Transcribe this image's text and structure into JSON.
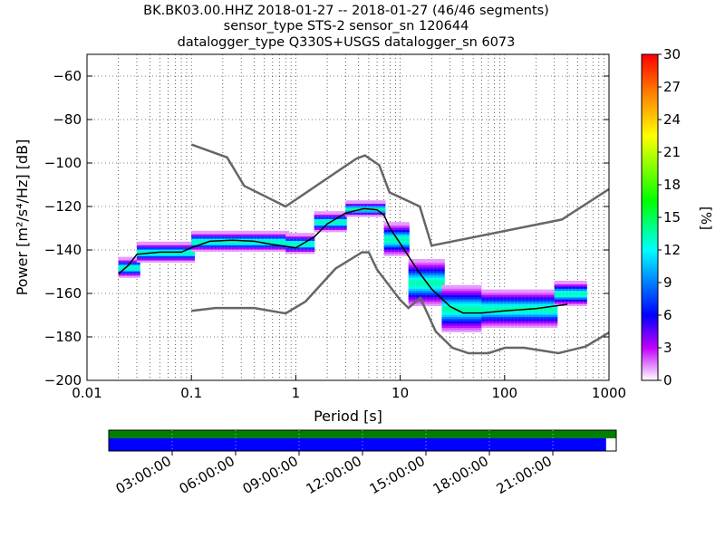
{
  "title": {
    "line1": "BK.BK03.00.HHZ   2018-01-27 -- 2018-01-27  (46/46 segments)",
    "line2": "sensor_type STS-2 sensor_sn 120644",
    "line3": "datalogger_type Q330S+USGS datalogger_sn 6073"
  },
  "colors": {
    "noise_model": "#666666",
    "mode_line": "#000000",
    "coverage_green": "#008000",
    "coverage_blue": "#0000ff"
  },
  "chart_data": {
    "type": "heatmap",
    "description_kind": "probabilistic power spectral density",
    "xlabel": "Period [s]",
    "ylabel": "Power [m²/s⁴/Hz] [dB]",
    "xscale": "log",
    "xlim": [
      0.01,
      1000
    ],
    "ylim": [
      -200,
      -50
    ],
    "xticks": [
      {
        "value": 0.01,
        "label": "0.01"
      },
      {
        "value": 0.1,
        "label": "0.1"
      },
      {
        "value": 1,
        "label": "1"
      },
      {
        "value": 10,
        "label": "10"
      },
      {
        "value": 100,
        "label": "100"
      },
      {
        "value": 1000,
        "label": "1000"
      }
    ],
    "yticks": [
      {
        "value": -60,
        "label": "−60"
      },
      {
        "value": -80,
        "label": "−80"
      },
      {
        "value": -100,
        "label": "−100"
      },
      {
        "value": -120,
        "label": "−120"
      },
      {
        "value": -140,
        "label": "−140"
      },
      {
        "value": -160,
        "label": "−160"
      },
      {
        "value": -180,
        "label": "−180"
      },
      {
        "value": -200,
        "label": "−200"
      }
    ],
    "grid": "dotted",
    "colorbar": {
      "label": "[%]",
      "range": [
        0,
        30
      ],
      "ticks": [
        {
          "value": 0,
          "label": "0"
        },
        {
          "value": 3,
          "label": "3"
        },
        {
          "value": 6,
          "label": "6"
        },
        {
          "value": 9,
          "label": "9"
        },
        {
          "value": 12,
          "label": "12"
        },
        {
          "value": 15,
          "label": "15"
        },
        {
          "value": 18,
          "label": "18"
        },
        {
          "value": 21,
          "label": "21"
        },
        {
          "value": 24,
          "label": "24"
        },
        {
          "value": 27,
          "label": "27"
        },
        {
          "value": 30,
          "label": "30"
        }
      ]
    },
    "noise_models": {
      "high": [
        [
          0.1,
          -91.5
        ],
        [
          0.22,
          -97.4
        ],
        [
          0.32,
          -110.5
        ],
        [
          0.8,
          -120
        ],
        [
          3.8,
          -98
        ],
        [
          4.6,
          -96.5
        ],
        [
          6.3,
          -101
        ],
        [
          7.9,
          -113.5
        ],
        [
          15.4,
          -120
        ],
        [
          20,
          -138
        ],
        [
          354,
          -126
        ],
        [
          1000,
          -112
        ]
      ],
      "low": [
        [
          0.1,
          -168
        ],
        [
          0.17,
          -166.7
        ],
        [
          0.4,
          -166.7
        ],
        [
          0.8,
          -169.2
        ],
        [
          1.24,
          -163.7
        ],
        [
          2.4,
          -148.6
        ],
        [
          4.3,
          -141.1
        ],
        [
          5,
          -141.1
        ],
        [
          6,
          -149
        ],
        [
          10,
          -163
        ],
        [
          12,
          -166.7
        ],
        [
          15.6,
          -162.1
        ],
        [
          21.9,
          -177.5
        ],
        [
          31.6,
          -185
        ],
        [
          45,
          -187.5
        ],
        [
          70,
          -187.5
        ],
        [
          101,
          -185
        ],
        [
          154,
          -185
        ],
        [
          328,
          -187.5
        ],
        [
          600,
          -184.4
        ],
        [
          1000,
          -178
        ]
      ]
    },
    "mode_curve": [
      [
        0.02,
        -151
      ],
      [
        0.025,
        -147
      ],
      [
        0.03,
        -142
      ],
      [
        0.05,
        -141
      ],
      [
        0.08,
        -141
      ],
      [
        0.1,
        -139
      ],
      [
        0.15,
        -136
      ],
      [
        0.25,
        -135.5
      ],
      [
        0.4,
        -136
      ],
      [
        0.6,
        -137.5
      ],
      [
        1,
        -139
      ],
      [
        1.5,
        -134
      ],
      [
        2,
        -128
      ],
      [
        3,
        -123
      ],
      [
        4.5,
        -121
      ],
      [
        6,
        -121.5
      ],
      [
        7,
        -124
      ],
      [
        8,
        -130
      ],
      [
        10,
        -137
      ],
      [
        15,
        -150
      ],
      [
        20,
        -158
      ],
      [
        30,
        -166
      ],
      [
        40,
        -169
      ],
      [
        60,
        -169
      ],
      [
        100,
        -168
      ],
      [
        200,
        -167
      ],
      [
        400,
        -165
      ]
    ],
    "histogram_bands": [
      {
        "x0": 0.02,
        "x1": 0.03,
        "center": -148,
        "spread": 4
      },
      {
        "x0": 0.03,
        "x1": 0.1,
        "center": -141,
        "spread": 4
      },
      {
        "x0": 0.1,
        "x1": 0.8,
        "center": -136,
        "spread": 4
      },
      {
        "x0": 0.8,
        "x1": 1.5,
        "center": -137,
        "spread": 4
      },
      {
        "x0": 1.5,
        "x1": 3,
        "center": -127,
        "spread": 4
      },
      {
        "x0": 3,
        "x1": 7,
        "center": -121,
        "spread": 3
      },
      {
        "x0": 7,
        "x1": 12,
        "center": -135,
        "spread": 7
      },
      {
        "x0": 12,
        "x1": 25,
        "center": -155,
        "spread": 10
      },
      {
        "x0": 25,
        "x1": 60,
        "center": -167,
        "spread": 10
      },
      {
        "x0": 60,
        "x1": 300,
        "center": -167,
        "spread": 8
      },
      {
        "x0": 300,
        "x1": 600,
        "center": -160,
        "spread": 5
      }
    ],
    "time_axis": {
      "labels": [
        "03:00:00",
        "06:00:00",
        "09:00:00",
        "12:00:00",
        "15:00:00",
        "18:00:00",
        "21:00:00"
      ],
      "hours": [
        3,
        6,
        9,
        12,
        15,
        18,
        21
      ],
      "range_hours": [
        0,
        24
      ],
      "coverage_fraction_green": 1.0,
      "coverage_fraction_blue": 0.98
    }
  }
}
